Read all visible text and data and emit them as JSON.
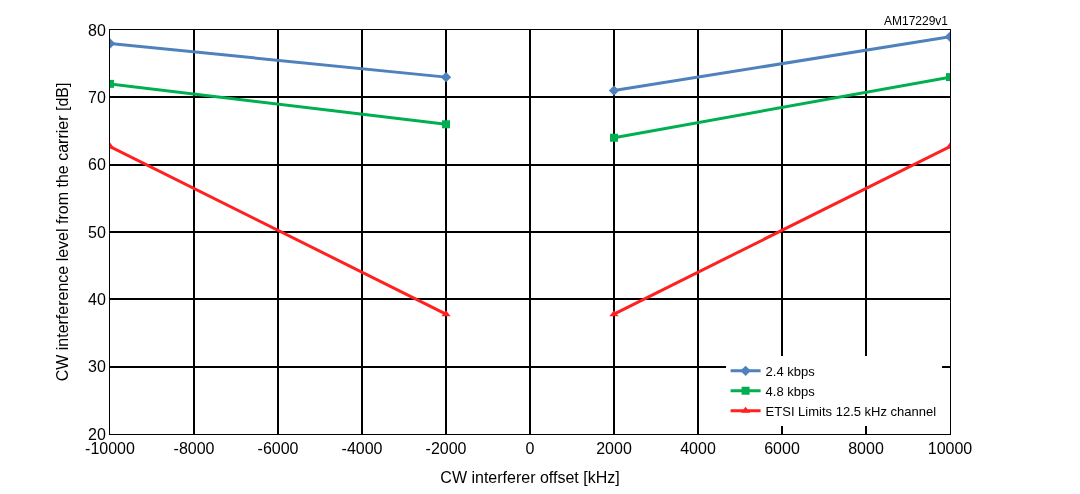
{
  "chart_data": {
    "type": "line",
    "xlabel": "CW interferer offset [kHz]",
    "ylabel": "CW interference level from the carrier [dB]",
    "annotations": [
      "AM17229v1"
    ],
    "x": [
      -10000,
      -2000,
      0,
      2000,
      10000
    ],
    "series": [
      {
        "name": "2.4 kbps",
        "color": "#4f81bd",
        "marker": "diamond",
        "values": [
          78,
          73,
          null,
          71,
          79
        ]
      },
      {
        "name": "4.8 kbps",
        "color": "#00b050",
        "marker": "square",
        "values": [
          72,
          66,
          null,
          64,
          73
        ]
      },
      {
        "name": "ETSI Limits 12.5 kHz channel",
        "color": "#ff2020",
        "marker": "triangle",
        "values": [
          62.7,
          37.8,
          null,
          37.8,
          62.7
        ]
      }
    ],
    "xlim": [
      -10000,
      10000
    ],
    "xticks": [
      -10000,
      -8000,
      -6000,
      -4000,
      -2000,
      0,
      2000,
      4000,
      6000,
      8000,
      10000
    ],
    "ylim": [
      20,
      80
    ],
    "yticks": [
      20,
      30,
      40,
      50,
      60,
      70,
      80
    ],
    "grid": true,
    "legend": "bottom right",
    "line_style": "solid"
  }
}
